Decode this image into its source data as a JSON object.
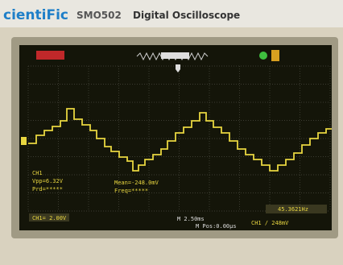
{
  "header": {
    "brand": "cientiFic",
    "model": "SMO502",
    "product": "Digital Oscilloscope"
  },
  "measurements": {
    "channel": "CH1",
    "vpp": "Vpp=6.32V",
    "period": "Prd=*****",
    "mean": "Mean=-248.0mV",
    "frequency": "Freq=*****"
  },
  "status": {
    "channel_scale": "CH1= 2.00V",
    "timebase": "M 2.50ms",
    "position": "M Pos:0.00μs",
    "trigger": "CH1 ∕ 248mV",
    "trigger_frequency": "45.3621Hz"
  }
}
